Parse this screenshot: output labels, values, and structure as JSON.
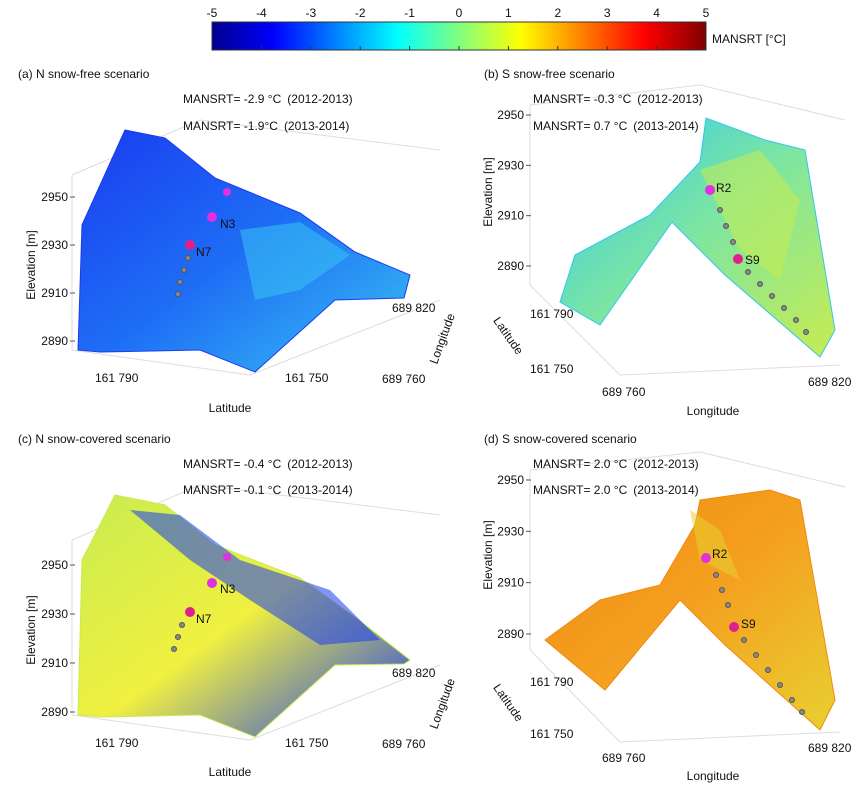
{
  "chart_data": [
    {
      "type": "colorbar",
      "label": "MANSRT [°C]",
      "xlim": [
        -5,
        5
      ],
      "xticks": [
        -5,
        -4,
        -3,
        -2,
        -1,
        0,
        1,
        2,
        3,
        4,
        5
      ],
      "colors": [
        "#00008f",
        "#0000ff",
        "#0080ff",
        "#00ffff",
        "#80ff80",
        "#ffff00",
        "#ff8000",
        "#ff0000",
        "#800000"
      ]
    },
    {
      "type": "surface",
      "title": "(a) N snow-free scenario",
      "annotations": [
        {
          "text": "MANSRT= -2.9 °C",
          "period": "(2012-2013)"
        },
        {
          "text": "MANSRT= -1.9°C",
          "period": "(2013-2014)"
        }
      ],
      "zlabel": "Elevation [m]",
      "zlim": [
        2880,
        2960
      ],
      "zticks": [
        2890,
        2910,
        2930,
        2950
      ],
      "xlabel": "Latitude",
      "xticks": [
        {
          "value": 161790,
          "label": "161 790"
        },
        {
          "value": 161750,
          "label": "161 750"
        }
      ],
      "ylabel": "Longitude",
      "yticks": [
        {
          "value": 689820,
          "label": "689 820"
        },
        {
          "value": 689760,
          "label": "689 760"
        }
      ],
      "points": [
        "N3",
        "N7"
      ],
      "surface_colors": [
        "#1a3cf0",
        "#1e6ef5",
        "#39c3f2"
      ]
    },
    {
      "type": "surface",
      "title": "(b) S snow-free scenario",
      "annotations": [
        {
          "text": "MANSRT= -0.3 °C",
          "period": "(2012-2013)"
        },
        {
          "text": "MANSRT= 0.7 °C",
          "period": "(2013-2014)"
        }
      ],
      "zlabel": "Elevation [m]",
      "zlim": [
        2880,
        2960
      ],
      "zticks": [
        2890,
        2910,
        2930,
        2950
      ],
      "xlabel": "Latitude",
      "xticks": [
        {
          "value": 161790,
          "label": "161 790"
        },
        {
          "value": 161750,
          "label": "161 750"
        }
      ],
      "ylabel": "Longitude",
      "yticks": [
        {
          "value": 689760,
          "label": "689 760"
        },
        {
          "value": 689820,
          "label": "689 820"
        }
      ],
      "points": [
        "R2",
        "S9"
      ],
      "surface_colors": [
        "#2ec8f0",
        "#7fe6a0",
        "#c8ec50"
      ]
    },
    {
      "type": "surface",
      "title": "(c) N snow-covered scenario",
      "annotations": [
        {
          "text": "MANSRT= -0.4 °C",
          "period": "(2012-2013)"
        },
        {
          "text": "MANSRT= -0.1 °C",
          "period": "(2013-2014)"
        }
      ],
      "zlabel": "Elevation [m]",
      "zlim": [
        2880,
        2960
      ],
      "zticks": [
        2890,
        2910,
        2930,
        2950
      ],
      "xlabel": "Latitude",
      "xticks": [
        {
          "value": 161790,
          "label": "161 790"
        },
        {
          "value": 161750,
          "label": "161 750"
        }
      ],
      "ylabel": "Longitude",
      "yticks": [
        {
          "value": 689820,
          "label": "689 820"
        },
        {
          "value": 689760,
          "label": "689 760"
        }
      ],
      "points": [
        "N3",
        "N7"
      ],
      "surface_colors": [
        "#c8ec50",
        "#f0f040",
        "#1a3cf0"
      ]
    },
    {
      "type": "surface",
      "title": "(d) S snow-covered scenario",
      "annotations": [
        {
          "text": "MANSRT= 2.0 °C",
          "period": "(2012-2013)"
        },
        {
          "text": "MANSRT= 2.0 °C",
          "period": "(2013-2014)"
        }
      ],
      "zlabel": "Elevation [m]",
      "zlim": [
        2880,
        2960
      ],
      "zticks": [
        2890,
        2910,
        2930,
        2950
      ],
      "xlabel": "Latitude",
      "xticks": [
        {
          "value": 161790,
          "label": "161 790"
        },
        {
          "value": 161750,
          "label": "161 750"
        }
      ],
      "ylabel": "Longitude",
      "yticks": [
        {
          "value": 689760,
          "label": "689 760"
        },
        {
          "value": 689820,
          "label": "689 820"
        }
      ],
      "points": [
        "R2",
        "S9"
      ],
      "surface_colors": [
        "#f08a10",
        "#f4a020",
        "#e8d030"
      ]
    }
  ]
}
